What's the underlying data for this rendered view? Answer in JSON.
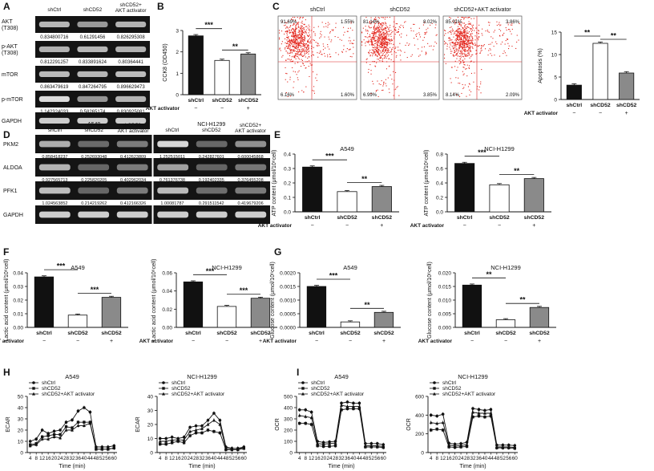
{
  "panels": {
    "A": "A",
    "B": "B",
    "C": "C",
    "D": "D",
    "E": "E",
    "F": "F",
    "G": "G",
    "H": "H",
    "I": "I"
  },
  "treatment": {
    "ctrl": "shCtrl",
    "kd": "shCD52",
    "kd_act": "shCD52+ AKT activator",
    "kd_act_line": "shCD52+AKT activator",
    "activator_label": "AKT activator",
    "minus": "−",
    "plus": "+"
  },
  "panelA": {
    "rows": [
      {
        "label": "AKT (T308)",
        "values": [
          "0.834800716",
          "0.61291456",
          "0.826295308"
        ]
      },
      {
        "label": "p-AKT (T308)",
        "values": [
          "0.812291257",
          "0.833891624",
          "0.80364441"
        ]
      },
      {
        "label": "mTOR",
        "values": [
          "0.863479619",
          "0.847264795",
          "0.896629473"
        ]
      },
      {
        "label": "p-mTOR",
        "values": [
          "1.142324033",
          "0.58265174",
          "0.830925081"
        ]
      },
      {
        "label": "GAPDH",
        "values": []
      }
    ]
  },
  "panelD": {
    "cell_lines": [
      "A549",
      "NCI-H1299"
    ],
    "rows": [
      {
        "label": "PKM2",
        "values": [
          "0.858418237",
          "0.252693048",
          "0.412623809",
          "1.252515011",
          "0.242827601",
          "0.600045868"
        ]
      },
      {
        "label": "ALDOA",
        "values": [
          "0.927565713",
          "0.225820205",
          "0.402962034",
          "0.761376738",
          "0.192402335",
          "0.376455208"
        ]
      },
      {
        "label": "PFK1",
        "values": [
          "1.024563852",
          "0.214219262",
          "0.412166326",
          "1.00081787",
          "0.291511542",
          "0.419679206"
        ]
      },
      {
        "label": "GAPDH",
        "values": []
      }
    ]
  },
  "panelC": {
    "plots": [
      {
        "title": "shCtrl",
        "q": [
          "91.69%",
          "1.55%",
          "6.16%",
          "1.60%"
        ]
      },
      {
        "title": "shCD52",
        "q": [
          "81.14%",
          "8.02%",
          "6.99%",
          "3.85%"
        ]
      },
      {
        "title": "shCD52+AKT activator",
        "q": [
          "85.91%",
          "3.86%",
          "8.14%",
          "2.09%"
        ]
      }
    ]
  },
  "chart_data": [
    {
      "panel": "B",
      "type": "bar",
      "categories": [
        "shCtrl",
        "shCD52",
        "shCD52"
      ],
      "values": [
        2.75,
        1.6,
        1.9
      ],
      "ylabel": "CCK8 (OD450)",
      "ylim": [
        0,
        3
      ],
      "yticks": [
        "0",
        "1",
        "2",
        "3"
      ],
      "sig": [
        "***",
        "**"
      ]
    },
    {
      "panel": "C",
      "type": "bar",
      "categories": [
        "shCtrl",
        "shCD52",
        "shCD52"
      ],
      "values": [
        3.2,
        12.5,
        5.9
      ],
      "ylabel": "Apoptosis (%)",
      "ylim": [
        0,
        15
      ],
      "yticks": [
        "0",
        "5",
        "10",
        "15"
      ],
      "sig": [
        "**",
        "**"
      ]
    },
    {
      "panel": "E",
      "title": "A549",
      "type": "bar",
      "categories": [
        "shCtrl",
        "shCD52",
        "shCD52"
      ],
      "values": [
        0.31,
        0.14,
        0.175
      ],
      "ylabel": "ATP content (μmol/10⁶cell)",
      "ylim": [
        0,
        0.4
      ],
      "yticks": [
        "0.0",
        "0.1",
        "0.2",
        "0.3",
        "0.4"
      ],
      "sig": [
        "***",
        "**"
      ]
    },
    {
      "panel": "E",
      "title": "NCI-H1299",
      "type": "bar",
      "categories": [
        "shCtrl",
        "shCD52",
        "shCD52"
      ],
      "values": [
        0.67,
        0.375,
        0.46
      ],
      "ylabel": "ATP content (μmol/10⁶cell)",
      "ylim": [
        0,
        0.8
      ],
      "yticks": [
        "0.0",
        "0.2",
        "0.4",
        "0.6",
        "0.8"
      ],
      "sig": [
        "***",
        "**"
      ]
    },
    {
      "panel": "F",
      "title": "A549",
      "type": "bar",
      "categories": [
        "shCtrl",
        "shCD52",
        "shCD52"
      ],
      "values": [
        0.037,
        0.009,
        0.022
      ],
      "ylabel": "Lactic acid content (μmol/10⁶cell)",
      "ylim": [
        0,
        0.04
      ],
      "yticks": [
        "0.00",
        "0.01",
        "0.02",
        "0.03",
        "0.04"
      ],
      "sig": [
        "***",
        "***"
      ]
    },
    {
      "panel": "F",
      "title": "NCI-H1299",
      "type": "bar",
      "categories": [
        "shCtrl",
        "shCD52",
        "shCD52"
      ],
      "values": [
        0.05,
        0.023,
        0.032
      ],
      "ylabel": "Lactic acid content (μmol/10⁶cell)",
      "ylim": [
        0,
        0.06
      ],
      "yticks": [
        "0.00",
        "0.02",
        "0.04",
        "0.06"
      ],
      "sig": [
        "***",
        "***"
      ]
    },
    {
      "panel": "G",
      "title": "A549",
      "type": "bar",
      "categories": [
        "shCtrl",
        "shCD52",
        "shCD52"
      ],
      "values": [
        0.0015,
        0.0002,
        0.00055
      ],
      "ylabel": "Glucose content (μmol/10⁶cell)",
      "ylim": [
        0,
        0.002
      ],
      "yticks": [
        "0.0000",
        "0.0005",
        "0.0010",
        "0.0015",
        "0.0020"
      ],
      "sig": [
        "***",
        "**"
      ]
    },
    {
      "panel": "G",
      "title": "NCI-H1299",
      "type": "bar",
      "categories": [
        "shCtrl",
        "shCD52",
        "shCD52"
      ],
      "values": [
        0.0155,
        0.0028,
        0.0073
      ],
      "ylabel": "Glucose content (μmol/10⁶cell)",
      "ylim": [
        0,
        0.02
      ],
      "yticks": [
        "0.000",
        "0.005",
        "0.010",
        "0.015",
        "0.020"
      ],
      "sig": [
        "**",
        "**"
      ]
    },
    {
      "panel": "H",
      "title": "A549",
      "type": "line",
      "xlabel": "Time (min)",
      "ylabel": "ECAR",
      "x": [
        4,
        8,
        12,
        16,
        20,
        24,
        28,
        32,
        36,
        40,
        44,
        48,
        52,
        56,
        60
      ],
      "ylim": [
        0,
        50
      ],
      "yticks": [
        "0",
        "10",
        "20",
        "30",
        "40",
        "50"
      ],
      "series": [
        {
          "name": "shCtrl",
          "values": [
            10,
            12,
            20,
            17,
            19,
            20,
            27,
            29,
            37,
            40,
            36,
            5,
            5,
            5,
            6
          ]
        },
        {
          "name": "shCD52",
          "values": [
            7,
            8,
            14,
            15,
            16,
            16,
            23,
            22,
            27,
            27,
            27,
            3,
            3,
            3,
            4
          ]
        },
        {
          "name": "shCD52+AKT activator",
          "values": [
            6,
            7,
            12,
            12,
            14,
            13,
            20,
            20,
            24,
            24,
            26,
            3,
            3,
            3,
            4
          ]
        }
      ]
    },
    {
      "panel": "H",
      "title": "NCI-H1299",
      "type": "line",
      "xlabel": "Time (min)",
      "ylabel": "ECAR",
      "x": [
        4,
        8,
        12,
        16,
        20,
        24,
        28,
        32,
        36,
        40,
        44,
        48,
        52,
        56,
        60
      ],
      "ylim": [
        0,
        40
      ],
      "yticks": [
        "0",
        "10",
        "20",
        "30",
        "40"
      ],
      "series": [
        {
          "name": "shCtrl",
          "values": [
            10,
            10,
            11,
            10,
            11,
            18,
            19,
            19,
            23,
            28,
            23,
            4,
            3,
            3,
            4
          ]
        },
        {
          "name": "shCD52",
          "values": [
            6,
            6,
            7,
            8,
            7,
            12,
            14,
            14,
            16,
            15,
            14,
            2,
            2,
            2,
            3
          ]
        },
        {
          "name": "shCD52+AKT activator",
          "values": [
            8,
            8,
            9,
            9,
            9,
            15,
            16,
            17,
            20,
            23,
            20,
            3,
            3,
            3,
            3
          ]
        }
      ]
    },
    {
      "panel": "I",
      "title": "A549",
      "type": "line",
      "xlabel": "Time (min)",
      "ylabel": "OCR",
      "x": [
        4,
        8,
        12,
        16,
        20,
        24,
        28,
        32,
        36,
        40,
        44,
        48,
        52,
        56,
        60
      ],
      "ylim": [
        0,
        500
      ],
      "yticks": [
        "0",
        "100",
        "200",
        "300",
        "400",
        "500"
      ],
      "series": [
        {
          "name": "shCtrl",
          "values": [
            380,
            380,
            360,
            100,
            90,
            95,
            100,
            440,
            450,
            440,
            440,
            80,
            80,
            80,
            70
          ]
        },
        {
          "name": "shCD52",
          "values": [
            260,
            260,
            250,
            60,
            55,
            55,
            60,
            380,
            390,
            390,
            390,
            50,
            50,
            50,
            45
          ]
        },
        {
          "name": "shCD52+AKT activator",
          "values": [
            330,
            320,
            310,
            80,
            75,
            80,
            85,
            420,
            410,
            410,
            410,
            60,
            60,
            60,
            55
          ]
        }
      ]
    },
    {
      "panel": "I",
      "title": "NCI-H1299",
      "type": "line",
      "xlabel": "Time (min)",
      "ylabel": "OCR",
      "x": [
        4,
        8,
        12,
        16,
        20,
        24,
        28,
        32,
        36,
        40,
        44,
        48,
        52,
        56,
        60
      ],
      "ylim": [
        0,
        600
      ],
      "yticks": [
        "0",
        "200",
        "400",
        "600"
      ],
      "series": [
        {
          "name": "shCtrl",
          "values": [
            400,
            390,
            410,
            100,
            90,
            95,
            110,
            470,
            460,
            450,
            460,
            80,
            80,
            80,
            75
          ]
        },
        {
          "name": "shCD52",
          "values": [
            240,
            250,
            240,
            60,
            55,
            60,
            65,
            380,
            390,
            380,
            390,
            50,
            50,
            50,
            45
          ]
        },
        {
          "name": "shCD52+AKT activator",
          "values": [
            320,
            310,
            320,
            80,
            70,
            75,
            85,
            430,
            420,
            420,
            420,
            60,
            60,
            60,
            55
          ]
        }
      ]
    }
  ]
}
